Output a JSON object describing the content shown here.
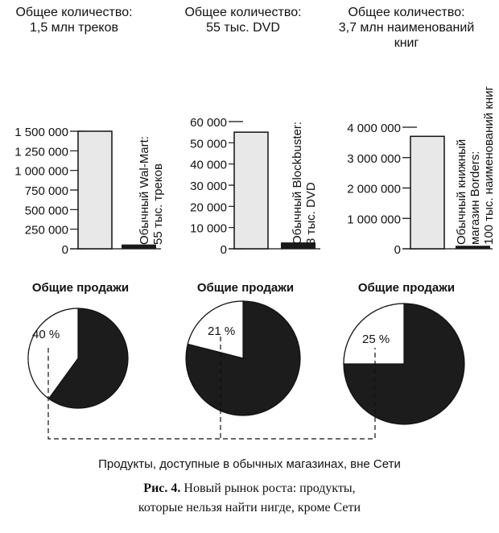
{
  "chart_data": [
    {
      "type": "bar",
      "title": [
        "Общее количество:",
        "1,5 млн треков"
      ],
      "yticks": [
        "1 500 000",
        "1 250 000",
        "1 000 000",
        "750 000",
        "500 000",
        "250 000",
        "0"
      ],
      "ylim": [
        0,
        1500000
      ],
      "values": [
        1500000,
        55000
      ],
      "label": [
        "Обычный Wal-Mart:",
        "55 тыс. треков"
      ]
    },
    {
      "type": "bar",
      "title": [
        "Общее количество:",
        "55 тыс. DVD"
      ],
      "yticks": [
        "60 000",
        "50 000",
        "40 000",
        "30 000",
        "20 000",
        "10 000",
        "0"
      ],
      "ylim": [
        0,
        60000
      ],
      "values": [
        55000,
        3000
      ],
      "label": [
        "Обычный Blockbuster:",
        "3 тыс. DVD"
      ]
    },
    {
      "type": "bar",
      "title": [
        "Общее количество:",
        "3,7 млн наименований",
        "книг"
      ],
      "yticks": [
        "4 000 000",
        "3 000 000",
        "2 000 000",
        "1 000 000",
        "0"
      ],
      "ylim": [
        0,
        4000000
      ],
      "values": [
        3700000,
        100000
      ],
      "label": [
        "Обычный книжный",
        "магазин Borders:",
        "100 тыс. наименований книг"
      ]
    },
    {
      "type": "pie",
      "title": "Общие продажи",
      "offline_percent": 40,
      "label": "40 %"
    },
    {
      "type": "pie",
      "title": "Общие продажи",
      "offline_percent": 21,
      "label": "21 %"
    },
    {
      "type": "pie",
      "title": "Общие продажи",
      "offline_percent": 25,
      "label": "25 %"
    }
  ],
  "legend_note": "Продукты, доступные в обычных магазинах, вне Сети",
  "caption": {
    "prefix": "Рис. 4.",
    "line1": " Новый рынок роста: продукты,",
    "line2": "которые нельзя найти нигде, кроме Сети"
  },
  "colors": {
    "total": "#e8e8e8",
    "store": "#1a1a1a",
    "pie_dark": "#1c1c1c"
  }
}
